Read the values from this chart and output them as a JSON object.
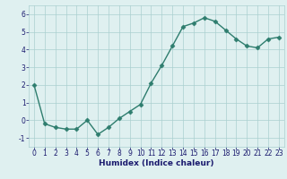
{
  "x": [
    0,
    1,
    2,
    3,
    4,
    5,
    6,
    7,
    8,
    9,
    10,
    11,
    12,
    13,
    14,
    15,
    16,
    17,
    18,
    19,
    20,
    21,
    22,
    23
  ],
  "y": [
    2.0,
    -0.2,
    -0.4,
    -0.5,
    -0.5,
    0.0,
    -0.8,
    -0.4,
    0.1,
    0.5,
    0.9,
    2.1,
    3.1,
    4.2,
    5.3,
    5.5,
    5.8,
    5.6,
    5.1,
    4.6,
    4.2,
    4.1,
    4.6,
    4.7
  ],
  "line_color": "#2e7d6e",
  "marker_color": "#2e7d6e",
  "bg_color": "#dff0f0",
  "grid_color": "#aacfcf",
  "xlabel": "Humidex (Indice chaleur)",
  "ylim": [
    -1.5,
    6.5
  ],
  "xlim": [
    -0.5,
    23.5
  ],
  "yticks": [
    -1,
    0,
    1,
    2,
    3,
    4,
    5,
    6
  ],
  "xticks": [
    0,
    1,
    2,
    3,
    4,
    5,
    6,
    7,
    8,
    9,
    10,
    11,
    12,
    13,
    14,
    15,
    16,
    17,
    18,
    19,
    20,
    21,
    22,
    23
  ],
  "font_color": "#1a1a6e",
  "xlabel_fontsize": 6.5,
  "tick_fontsize": 5.5,
  "linewidth": 1.0,
  "markersize": 2.5
}
